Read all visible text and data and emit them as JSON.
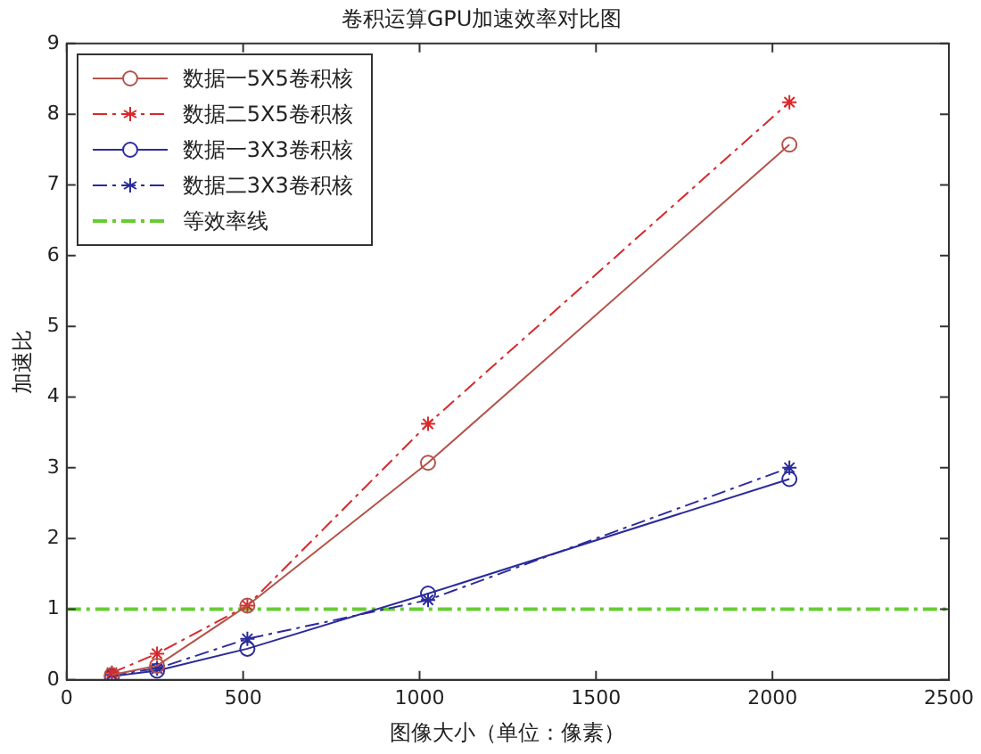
{
  "chart_data": {
    "type": "line",
    "title": "卷积运算GPU加速效率对比图",
    "xlabel": "图像大小（单位：像素）",
    "ylabel": "加速比",
    "xlim": [
      0,
      2500
    ],
    "xticks": [
      0,
      500,
      1000,
      1500,
      2000,
      2500
    ],
    "ylim": [
      0,
      9
    ],
    "yticks": [
      0,
      1,
      2,
      3,
      4,
      5,
      6,
      7,
      8,
      9
    ],
    "grid": false,
    "legend": "top left",
    "series": [
      {
        "name": "数据一5X5卷积核",
        "color": "#b5524a",
        "x": [
          128,
          256,
          512,
          1024,
          2048
        ],
        "values": [
          0.07,
          0.2,
          1.05,
          3.07,
          7.57
        ],
        "marker": "circle",
        "line_style": "solid"
      },
      {
        "name": "数据二5X5卷积核",
        "color": "#d8282a",
        "x": [
          128,
          256,
          512,
          1024,
          2048
        ],
        "values": [
          0.1,
          0.37,
          1.05,
          3.62,
          8.17
        ],
        "marker": "cross",
        "line_style": "dashed"
      },
      {
        "name": "数据一3X3卷积核",
        "color": "#2b2b9b",
        "x": [
          128,
          256,
          512,
          1024,
          2048
        ],
        "values": [
          0.05,
          0.13,
          0.44,
          1.22,
          2.84
        ],
        "marker": "circle",
        "line_style": "solid"
      },
      {
        "name": "数据二3X3卷积核",
        "color": "#2b2b9b",
        "x": [
          128,
          256,
          512,
          1024,
          2048
        ],
        "values": [
          0.07,
          0.16,
          0.58,
          1.13,
          3.0
        ],
        "marker": "cross",
        "line_style": "dashed"
      },
      {
        "name": "等效率线",
        "color": "#66cc33",
        "x": [
          0,
          2500
        ],
        "values": [
          1,
          1
        ],
        "marker": "none",
        "line_style": "dashed"
      }
    ]
  }
}
